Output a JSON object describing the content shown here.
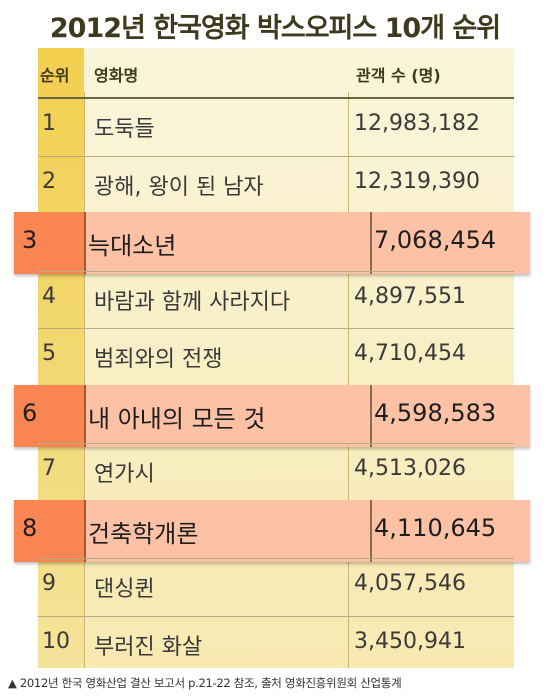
{
  "title": "2012년 한국영화 박스오피스 10개 순위",
  "columns": {
    "rank": "순위",
    "movie": "영화명",
    "audience": "관객 수 (명)"
  },
  "rows": [
    {
      "rank": "1",
      "movie": "도둑들",
      "audience": "12,983,182",
      "highlighted": false
    },
    {
      "rank": "2",
      "movie": "광해, 왕이 된 남자",
      "audience": "12,319,390",
      "highlighted": false
    },
    {
      "rank": "3",
      "movie": "늑대소년",
      "audience": "7,068,454",
      "highlighted": true
    },
    {
      "rank": "4",
      "movie": "바람과 함께 사라지다",
      "audience": "4,897,551",
      "highlighted": false
    },
    {
      "rank": "5",
      "movie": "범죄와의 전쟁",
      "audience": "4,710,454",
      "highlighted": false
    },
    {
      "rank": "6",
      "movie": "내 아내의 모든 것",
      "audience": "4,598,583",
      "highlighted": true
    },
    {
      "rank": "7",
      "movie": "연가시",
      "audience": "4,513,026",
      "highlighted": false
    },
    {
      "rank": "8",
      "movie": "건축학개론",
      "audience": "4,110,645",
      "highlighted": true
    },
    {
      "rank": "9",
      "movie": "댄싱퀸",
      "audience": "4,057,546",
      "highlighted": false
    },
    {
      "rank": "10",
      "movie": "부러진 화살",
      "audience": "3,450,941",
      "highlighted": false
    }
  ],
  "footer": "▲ 2012년 한국 영화산업 결산 보고서 p.21-22 참조, 출처 영화진흥위원회 산업통계",
  "colors": {
    "rank_column": "#f3cf4f",
    "highlight_rank": "#f88552",
    "highlight_row": "#fdc1a6",
    "table_background": "#f9efc6"
  }
}
